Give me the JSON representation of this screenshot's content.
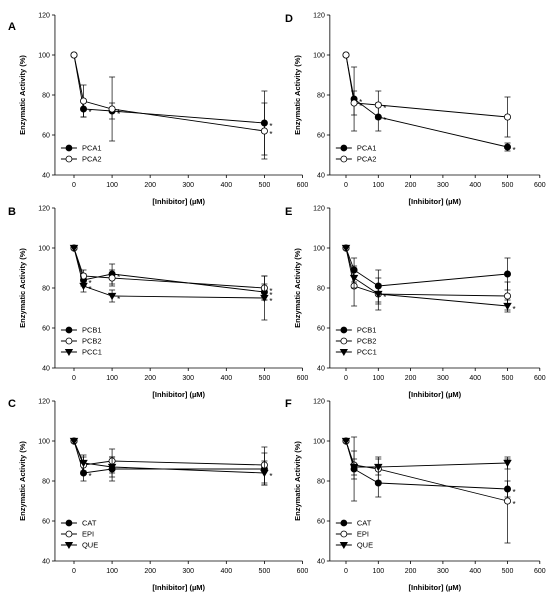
{
  "chart_data": [
    {
      "panel": "A",
      "type": "scatter",
      "xlabel": "[Inhibitor] (µM)",
      "ylabel": "Enzymatic Activity (%)",
      "xlim": [
        -50,
        600
      ],
      "ylim": [
        40,
        120
      ],
      "xticks": [
        0,
        100,
        200,
        300,
        400,
        500,
        600
      ],
      "yticks": [
        40,
        60,
        80,
        100,
        120
      ],
      "legend_position": "bottom-left",
      "series": [
        {
          "name": "PCA1",
          "marker": "filled-circle",
          "points": [
            {
              "x": 0,
              "y": 100,
              "err": 0,
              "star": ""
            },
            {
              "x": 25,
              "y": 73,
              "err": 4,
              "star": "*"
            },
            {
              "x": 100,
              "y": 72,
              "err": 4,
              "star": "*"
            },
            {
              "x": 500,
              "y": 66,
              "err": 16,
              "star": "*"
            }
          ]
        },
        {
          "name": "PCA2",
          "marker": "open-circle",
          "points": [
            {
              "x": 0,
              "y": 100,
              "err": 0,
              "star": ""
            },
            {
              "x": 25,
              "y": 77,
              "err": 8,
              "star": ""
            },
            {
              "x": 100,
              "y": 73,
              "err": 16,
              "star": "*"
            },
            {
              "x": 500,
              "y": 62,
              "err": 14,
              "star": "*"
            }
          ]
        }
      ]
    },
    {
      "panel": "B",
      "type": "scatter",
      "xlabel": "[Inhibitor] (µM)",
      "ylabel": "Enzymatic Activity (%)",
      "xlim": [
        -50,
        600
      ],
      "ylim": [
        40,
        120
      ],
      "xticks": [
        0,
        100,
        200,
        300,
        400,
        500,
        600
      ],
      "yticks": [
        40,
        60,
        80,
        100,
        120
      ],
      "legend_position": "bottom-left",
      "series": [
        {
          "name": "PCB1",
          "marker": "filled-circle",
          "points": [
            {
              "x": 0,
              "y": 100,
              "err": 0,
              "star": ""
            },
            {
              "x": 25,
              "y": 84,
              "err": 3,
              "star": "*"
            },
            {
              "x": 100,
              "y": 87,
              "err": 5,
              "star": "*"
            },
            {
              "x": 500,
              "y": 78,
              "err": 4,
              "star": "*"
            }
          ]
        },
        {
          "name": "PCB2",
          "marker": "open-circle",
          "points": [
            {
              "x": 0,
              "y": 100,
              "err": 0,
              "star": ""
            },
            {
              "x": 25,
              "y": 86,
              "err": 3,
              "star": ""
            },
            {
              "x": 100,
              "y": 85,
              "err": 4,
              "star": ""
            },
            {
              "x": 500,
              "y": 80,
              "err": 6,
              "star": "*"
            }
          ]
        },
        {
          "name": "PCC1",
          "marker": "filled-triangle-down",
          "points": [
            {
              "x": 0,
              "y": 100,
              "err": 0,
              "star": ""
            },
            {
              "x": 25,
              "y": 81,
              "err": 3,
              "star": "*"
            },
            {
              "x": 100,
              "y": 76,
              "err": 3,
              "star": "*"
            },
            {
              "x": 500,
              "y": 75,
              "err": 11,
              "star": "*"
            }
          ]
        }
      ]
    },
    {
      "panel": "C",
      "type": "scatter",
      "xlabel": "[Inhibitor] (µM)",
      "ylabel": "Enzymatic Activity (%)",
      "xlim": [
        -50,
        600
      ],
      "ylim": [
        40,
        120
      ],
      "xticks": [
        0,
        100,
        200,
        300,
        400,
        500,
        600
      ],
      "yticks": [
        40,
        60,
        80,
        100,
        120
      ],
      "legend_position": "bottom-left",
      "series": [
        {
          "name": "CAT",
          "marker": "filled-circle",
          "points": [
            {
              "x": 0,
              "y": 100,
              "err": 0,
              "star": ""
            },
            {
              "x": 25,
              "y": 84,
              "err": 4,
              "star": "*"
            },
            {
              "x": 100,
              "y": 86,
              "err": 6,
              "star": ""
            },
            {
              "x": 500,
              "y": 86,
              "err": 8,
              "star": ""
            }
          ]
        },
        {
          "name": "EPI",
          "marker": "open-circle",
          "points": [
            {
              "x": 0,
              "y": 100,
              "err": 0,
              "star": ""
            },
            {
              "x": 25,
              "y": 88,
              "err": 4,
              "star": ""
            },
            {
              "x": 100,
              "y": 90,
              "err": 6,
              "star": ""
            },
            {
              "x": 500,
              "y": 88,
              "err": 9,
              "star": ""
            }
          ]
        },
        {
          "name": "QUE",
          "marker": "filled-triangle-down",
          "points": [
            {
              "x": 0,
              "y": 100,
              "err": 0,
              "star": ""
            },
            {
              "x": 25,
              "y": 89,
              "err": 4,
              "star": ""
            },
            {
              "x": 100,
              "y": 87,
              "err": 5,
              "star": ""
            },
            {
              "x": 500,
              "y": 84,
              "err": 6,
              "star": "*"
            }
          ]
        }
      ]
    },
    {
      "panel": "D",
      "type": "scatter",
      "xlabel": "[Inhibitor] (µM)",
      "ylabel": "Enzymatic Activity (%)",
      "xlim": [
        -50,
        600
      ],
      "ylim": [
        40,
        120
      ],
      "xticks": [
        0,
        100,
        200,
        300,
        400,
        500,
        600
      ],
      "yticks": [
        40,
        60,
        80,
        100,
        120
      ],
      "legend_position": "bottom-left",
      "series": [
        {
          "name": "PCA1",
          "marker": "filled-circle",
          "points": [
            {
              "x": 0,
              "y": 100,
              "err": 0,
              "star": ""
            },
            {
              "x": 25,
              "y": 78,
              "err": 16,
              "star": "*"
            },
            {
              "x": 100,
              "y": 69,
              "err": 7,
              "star": "*"
            },
            {
              "x": 500,
              "y": 54,
              "err": 2,
              "star": "*"
            }
          ]
        },
        {
          "name": "PCA2",
          "marker": "open-circle",
          "points": [
            {
              "x": 0,
              "y": 100,
              "err": 0,
              "star": ""
            },
            {
              "x": 25,
              "y": 76,
              "err": 6,
              "star": "*"
            },
            {
              "x": 100,
              "y": 75,
              "err": 7,
              "star": "*"
            },
            {
              "x": 500,
              "y": 69,
              "err": 10,
              "star": ""
            }
          ]
        }
      ]
    },
    {
      "panel": "E",
      "type": "scatter",
      "xlabel": "[Inhibitor] (µM)",
      "ylabel": "Enzymatic Activity (%)",
      "xlim": [
        -50,
        600
      ],
      "ylim": [
        40,
        120
      ],
      "xticks": [
        0,
        100,
        200,
        300,
        400,
        500,
        600
      ],
      "yticks": [
        40,
        60,
        80,
        100,
        120
      ],
      "legend_position": "bottom-left",
      "series": [
        {
          "name": "PCB1",
          "marker": "filled-circle",
          "points": [
            {
              "x": 0,
              "y": 100,
              "err": 0,
              "star": ""
            },
            {
              "x": 25,
              "y": 89,
              "err": 6,
              "star": ""
            },
            {
              "x": 100,
              "y": 81,
              "err": 8,
              "star": ""
            },
            {
              "x": 500,
              "y": 87,
              "err": 8,
              "star": ""
            }
          ]
        },
        {
          "name": "PCB2",
          "marker": "open-circle",
          "points": [
            {
              "x": 0,
              "y": 100,
              "err": 0,
              "star": ""
            },
            {
              "x": 25,
              "y": 81,
              "err": 10,
              "star": ""
            },
            {
              "x": 100,
              "y": 77,
              "err": 8,
              "star": ""
            },
            {
              "x": 500,
              "y": 76,
              "err": 7,
              "star": ""
            }
          ]
        },
        {
          "name": "PCC1",
          "marker": "filled-triangle-down",
          "points": [
            {
              "x": 0,
              "y": 100,
              "err": 0,
              "star": ""
            },
            {
              "x": 25,
              "y": 85,
              "err": 5,
              "star": ""
            },
            {
              "x": 100,
              "y": 77,
              "err": 5,
              "star": "*"
            },
            {
              "x": 500,
              "y": 71,
              "err": 3,
              "star": "*"
            }
          ]
        }
      ]
    },
    {
      "panel": "F",
      "type": "scatter",
      "xlabel": "[Inhibitor] (µM)",
      "ylabel": "Enzymatic Activity (%)",
      "xlim": [
        -50,
        600
      ],
      "ylim": [
        40,
        120
      ],
      "xticks": [
        0,
        100,
        200,
        300,
        400,
        500,
        600
      ],
      "yticks": [
        40,
        60,
        80,
        100,
        120
      ],
      "legend_position": "bottom-left",
      "series": [
        {
          "name": "CAT",
          "marker": "filled-circle",
          "points": [
            {
              "x": 0,
              "y": 100,
              "err": 0,
              "star": ""
            },
            {
              "x": 25,
              "y": 86,
              "err": 16,
              "star": ""
            },
            {
              "x": 100,
              "y": 79,
              "err": 7,
              "star": ""
            },
            {
              "x": 500,
              "y": 76,
              "err": 4,
              "star": "*"
            }
          ]
        },
        {
          "name": "EPI",
          "marker": "open-circle",
          "points": [
            {
              "x": 0,
              "y": 100,
              "err": 0,
              "star": ""
            },
            {
              "x": 25,
              "y": 88,
              "err": 7,
              "star": ""
            },
            {
              "x": 100,
              "y": 86,
              "err": 6,
              "star": ""
            },
            {
              "x": 500,
              "y": 70,
              "err": 21,
              "star": "*"
            }
          ]
        },
        {
          "name": "QUE",
          "marker": "filled-triangle-down",
          "points": [
            {
              "x": 0,
              "y": 100,
              "err": 0,
              "star": ""
            },
            {
              "x": 25,
              "y": 87,
              "err": 4,
              "star": ""
            },
            {
              "x": 100,
              "y": 87,
              "err": 4,
              "star": ""
            },
            {
              "x": 500,
              "y": 89,
              "err": 3,
              "star": ""
            }
          ]
        }
      ]
    }
  ]
}
